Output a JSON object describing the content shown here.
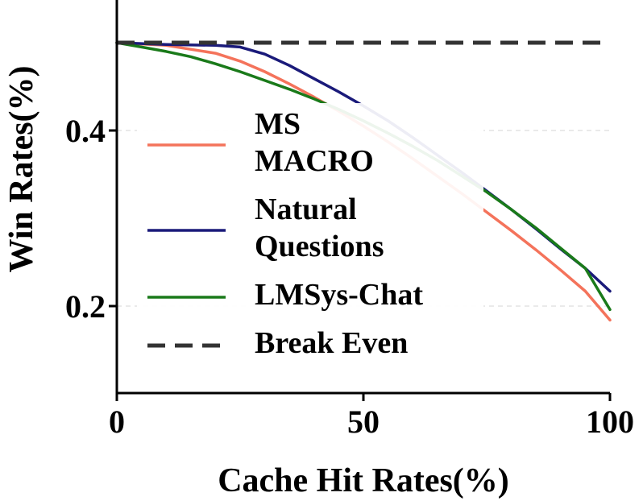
{
  "chart_data": {
    "type": "line",
    "xlabel": "Cache Hit Rates(%)",
    "ylabel": "Win Rates(%)",
    "xlim": [
      0,
      100
    ],
    "ylim": [
      0.1,
      0.5
    ],
    "xticks": [
      0,
      50,
      100
    ],
    "xtick_labels": [
      "0",
      "50",
      "100"
    ],
    "yticks": [
      0.2,
      0.4
    ],
    "ytick_labels": [
      "0.2",
      "0.4"
    ],
    "grid": "horizontal-dashed",
    "legend_position": "center",
    "series": [
      {
        "name": "MS MACRO",
        "name_lines": [
          "MS",
          "MACRO"
        ],
        "color": "#f4735b",
        "dash": "solid",
        "x": [
          0,
          10,
          20,
          25,
          30,
          35,
          40,
          45,
          50,
          55,
          60,
          65,
          70,
          75,
          80,
          85,
          90,
          95,
          100
        ],
        "y": [
          0.5,
          0.497,
          0.488,
          0.479,
          0.467,
          0.453,
          0.438,
          0.422,
          0.405,
          0.387,
          0.368,
          0.348,
          0.328,
          0.307,
          0.286,
          0.264,
          0.241,
          0.217,
          0.184
        ]
      },
      {
        "name": "Natural Questions",
        "name_lines": [
          "Natural",
          "Questions"
        ],
        "color": "#1a1a7a",
        "dash": "solid",
        "x": [
          0,
          10,
          20,
          25,
          30,
          35,
          40,
          45,
          50,
          55,
          60,
          65,
          70,
          75,
          80,
          85,
          90,
          95,
          100
        ],
        "y": [
          0.5,
          0.498,
          0.497,
          0.495,
          0.487,
          0.474,
          0.459,
          0.444,
          0.428,
          0.411,
          0.392,
          0.372,
          0.352,
          0.331,
          0.31,
          0.288,
          0.265,
          0.243,
          0.217
        ]
      },
      {
        "name": "LMSys-Chat",
        "name_lines": [
          "LMSys-Chat"
        ],
        "color": "#1a7a1a",
        "dash": "solid",
        "x": [
          0,
          5,
          10,
          15,
          20,
          25,
          30,
          35,
          40,
          45,
          50,
          55,
          60,
          65,
          70,
          75,
          80,
          85,
          90,
          95,
          100
        ],
        "y": [
          0.5,
          0.495,
          0.49,
          0.484,
          0.476,
          0.467,
          0.457,
          0.447,
          0.436,
          0.424,
          0.411,
          0.397,
          0.382,
          0.366,
          0.348,
          0.33,
          0.31,
          0.289,
          0.266,
          0.243,
          0.196
        ]
      },
      {
        "name": "Break Even",
        "name_lines": [
          "Break Even"
        ],
        "color": "#333333",
        "dash": "dashed",
        "x": [
          0,
          100
        ],
        "y": [
          0.5,
          0.5
        ]
      }
    ]
  }
}
